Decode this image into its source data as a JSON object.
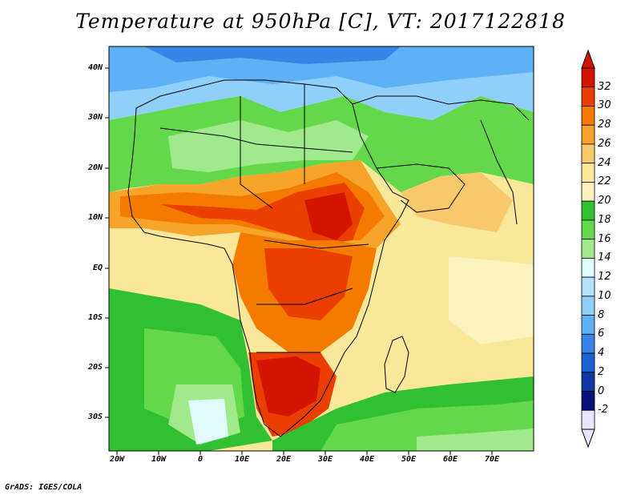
{
  "title": "Temperature at 950hPa [C], VT: 2017122818",
  "credit": "GrADS: IGES/COLA",
  "map": {
    "region": "Africa",
    "variable": "Temperature",
    "level": "950hPa",
    "units": "C",
    "valid_time": "2017122818",
    "lat_labels": [
      "40N",
      "30N",
      "20N",
      "10N",
      "EQ",
      "10S",
      "20S",
      "30S"
    ],
    "lon_labels": [
      "20W",
      "10W",
      "0",
      "10E",
      "20E",
      "30E",
      "40E",
      "50E",
      "60E",
      "70E"
    ]
  },
  "colorbar": {
    "labels": [
      "32",
      "30",
      "28",
      "26",
      "24",
      "22",
      "20",
      "18",
      "16",
      "14",
      "12",
      "10",
      "8",
      "6",
      "4",
      "2",
      "0",
      "-2"
    ],
    "colors": [
      "#d41400",
      "#ea3f00",
      "#f57a00",
      "#f7a52a",
      "#f7c96a",
      "#f9e79a",
      "#fbf3bd",
      "#32c033",
      "#63d84a",
      "#a0ea8c",
      "#e1fbfa",
      "#b2e3fb",
      "#8ed0fa",
      "#5fb0f5",
      "#3684e6",
      "#1e5fd3",
      "#0f3aa5",
      "#08107a",
      "#e8e6fb"
    ]
  }
}
